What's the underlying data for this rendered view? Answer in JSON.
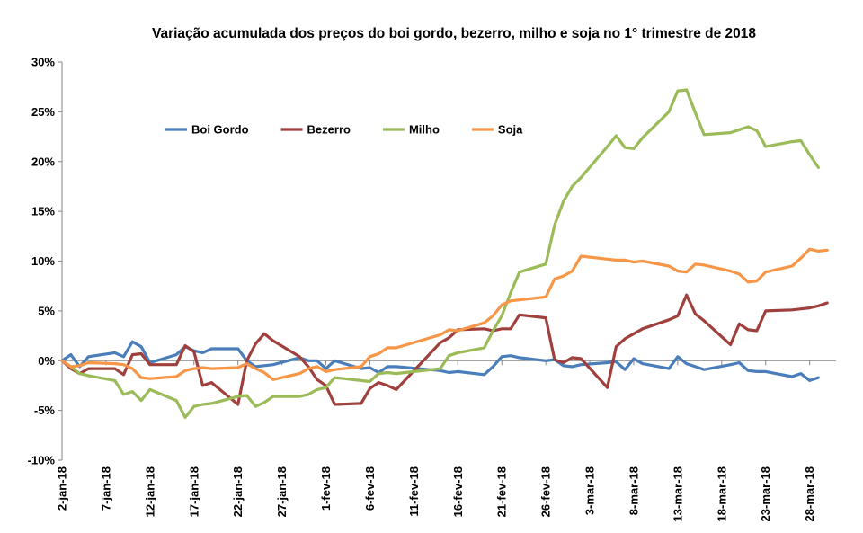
{
  "chart_data": {
    "type": "line",
    "title": "Variação acumulada dos preços do boi gordo, bezerro, milho e soja no 1° trimestre de 2018",
    "xlabel": "",
    "ylabel": "",
    "ylim": [
      -0.1,
      0.3
    ],
    "y_ticks": [
      {
        "value": 0.3,
        "label": "30%"
      },
      {
        "value": 0.25,
        "label": "25%"
      },
      {
        "value": 0.2,
        "label": "20%"
      },
      {
        "value": 0.15,
        "label": "15%"
      },
      {
        "value": 0.1,
        "label": "10%"
      },
      {
        "value": 0.05,
        "label": "5%"
      },
      {
        "value": 0.0,
        "label": "0%"
      },
      {
        "value": -0.05,
        "label": "-5%"
      },
      {
        "value": -0.1,
        "label": "-10%"
      }
    ],
    "x_range": [
      "2018-01-02",
      "2018-03-31"
    ],
    "x_ticks": [
      {
        "date": "2018-01-02",
        "label": "2-jan-18"
      },
      {
        "date": "2018-01-07",
        "label": "7-jan-18"
      },
      {
        "date": "2018-01-12",
        "label": "12-jan-18"
      },
      {
        "date": "2018-01-17",
        "label": "17-jan-18"
      },
      {
        "date": "2018-01-22",
        "label": "22-jan-18"
      },
      {
        "date": "2018-01-27",
        "label": "27-jan-18"
      },
      {
        "date": "2018-02-01",
        "label": "1-fev-18"
      },
      {
        "date": "2018-02-06",
        "label": "6-fev-18"
      },
      {
        "date": "2018-02-11",
        "label": "11-fev-18"
      },
      {
        "date": "2018-02-16",
        "label": "16-fev-18"
      },
      {
        "date": "2018-02-21",
        "label": "21-fev-18"
      },
      {
        "date": "2018-02-26",
        "label": "26-fev-18"
      },
      {
        "date": "2018-03-03",
        "label": "3-mar-18"
      },
      {
        "date": "2018-03-08",
        "label": "8-mar-18"
      },
      {
        "date": "2018-03-13",
        "label": "13-mar-18"
      },
      {
        "date": "2018-03-18",
        "label": "18-mar-18"
      },
      {
        "date": "2018-03-23",
        "label": "23-mar-18"
      },
      {
        "date": "2018-03-28",
        "label": "28-mar-18"
      }
    ],
    "grid": false,
    "legend_position": "top-left",
    "series": [
      {
        "name": "Boi Gordo",
        "color": "#4a7ebb",
        "points": [
          [
            "2018-01-02",
            0.0
          ],
          [
            "2018-01-03",
            0.006
          ],
          [
            "2018-01-04",
            -0.006
          ],
          [
            "2018-01-05",
            0.004
          ],
          [
            "2018-01-08",
            0.008
          ],
          [
            "2018-01-09",
            0.004
          ],
          [
            "2018-01-10",
            0.019
          ],
          [
            "2018-01-11",
            0.014
          ],
          [
            "2018-01-12",
            -0.002
          ],
          [
            "2018-01-15",
            0.006
          ],
          [
            "2018-01-16",
            0.014
          ],
          [
            "2018-01-17",
            0.01
          ],
          [
            "2018-01-18",
            0.008
          ],
          [
            "2018-01-19",
            0.012
          ],
          [
            "2018-01-22",
            0.012
          ],
          [
            "2018-01-23",
            0.0
          ],
          [
            "2018-01-24",
            -0.006
          ],
          [
            "2018-01-25",
            -0.005
          ],
          [
            "2018-01-26",
            -0.004
          ],
          [
            "2018-01-29",
            0.003
          ],
          [
            "2018-01-30",
            0.0
          ],
          [
            "2018-01-31",
            0.0
          ],
          [
            "2018-02-01",
            -0.008
          ],
          [
            "2018-02-02",
            0.0
          ],
          [
            "2018-02-05",
            -0.008
          ],
          [
            "2018-02-06",
            -0.007
          ],
          [
            "2018-02-07",
            -0.012
          ],
          [
            "2018-02-08",
            -0.006
          ],
          [
            "2018-02-09",
            -0.006
          ],
          [
            "2018-02-14",
            -0.01
          ],
          [
            "2018-02-15",
            -0.012
          ],
          [
            "2018-02-16",
            -0.011
          ],
          [
            "2018-02-19",
            -0.014
          ],
          [
            "2018-02-20",
            -0.006
          ],
          [
            "2018-02-21",
            0.004
          ],
          [
            "2018-02-22",
            0.005
          ],
          [
            "2018-02-23",
            0.003
          ],
          [
            "2018-02-26",
            0.0
          ],
          [
            "2018-02-27",
            0.001
          ],
          [
            "2018-02-28",
            -0.005
          ],
          [
            "2018-03-01",
            -0.006
          ],
          [
            "2018-03-02",
            -0.004
          ],
          [
            "2018-03-05",
            -0.002
          ],
          [
            "2018-03-06",
            -0.001
          ],
          [
            "2018-03-07",
            -0.009
          ],
          [
            "2018-03-08",
            0.002
          ],
          [
            "2018-03-09",
            -0.003
          ],
          [
            "2018-03-12",
            -0.008
          ],
          [
            "2018-03-13",
            0.004
          ],
          [
            "2018-03-14",
            -0.003
          ],
          [
            "2018-03-15",
            -0.006
          ],
          [
            "2018-03-16",
            -0.009
          ],
          [
            "2018-03-19",
            -0.004
          ],
          [
            "2018-03-20",
            -0.002
          ],
          [
            "2018-03-21",
            -0.01
          ],
          [
            "2018-03-22",
            -0.011
          ],
          [
            "2018-03-23",
            -0.011
          ],
          [
            "2018-03-26",
            -0.016
          ],
          [
            "2018-03-27",
            -0.013
          ],
          [
            "2018-03-28",
            -0.02
          ],
          [
            "2018-03-29",
            -0.017
          ]
        ]
      },
      {
        "name": "Bezerro",
        "color": "#a0403d",
        "points": [
          [
            "2018-01-02",
            0.0
          ],
          [
            "2018-01-03",
            -0.008
          ],
          [
            "2018-01-04",
            -0.013
          ],
          [
            "2018-01-05",
            -0.008
          ],
          [
            "2018-01-08",
            -0.008
          ],
          [
            "2018-01-09",
            -0.014
          ],
          [
            "2018-01-10",
            0.006
          ],
          [
            "2018-01-11",
            0.007
          ],
          [
            "2018-01-12",
            -0.004
          ],
          [
            "2018-01-15",
            -0.004
          ],
          [
            "2018-01-16",
            0.015
          ],
          [
            "2018-01-17",
            0.009
          ],
          [
            "2018-01-18",
            -0.025
          ],
          [
            "2018-01-19",
            -0.022
          ],
          [
            "2018-01-22",
            -0.044
          ],
          [
            "2018-01-23",
            0.0
          ],
          [
            "2018-01-24",
            0.017
          ],
          [
            "2018-01-25",
            0.027
          ],
          [
            "2018-01-26",
            0.02
          ],
          [
            "2018-01-29",
            0.004
          ],
          [
            "2018-01-30",
            -0.006
          ],
          [
            "2018-01-31",
            -0.019
          ],
          [
            "2018-02-01",
            -0.025
          ],
          [
            "2018-02-02",
            -0.044
          ],
          [
            "2018-02-05",
            -0.043
          ],
          [
            "2018-02-06",
            -0.028
          ],
          [
            "2018-02-07",
            -0.022
          ],
          [
            "2018-02-08",
            -0.025
          ],
          [
            "2018-02-09",
            -0.029
          ],
          [
            "2018-02-14",
            0.018
          ],
          [
            "2018-02-15",
            0.023
          ],
          [
            "2018-02-16",
            0.031
          ],
          [
            "2018-02-19",
            0.032
          ],
          [
            "2018-02-20",
            0.03
          ],
          [
            "2018-02-21",
            0.032
          ],
          [
            "2018-02-22",
            0.032
          ],
          [
            "2018-02-23",
            0.046
          ],
          [
            "2018-02-26",
            0.043
          ],
          [
            "2018-02-27",
            0.001
          ],
          [
            "2018-02-28",
            -0.002
          ],
          [
            "2018-03-01",
            0.003
          ],
          [
            "2018-03-02",
            0.002
          ],
          [
            "2018-03-05",
            -0.027
          ],
          [
            "2018-03-06",
            0.014
          ],
          [
            "2018-03-07",
            0.022
          ],
          [
            "2018-03-08",
            0.027
          ],
          [
            "2018-03-09",
            0.032
          ],
          [
            "2018-03-12",
            0.041
          ],
          [
            "2018-03-13",
            0.045
          ],
          [
            "2018-03-14",
            0.066
          ],
          [
            "2018-03-15",
            0.047
          ],
          [
            "2018-03-16",
            0.04
          ],
          [
            "2018-03-19",
            0.016
          ],
          [
            "2018-03-20",
            0.037
          ],
          [
            "2018-03-21",
            0.031
          ],
          [
            "2018-03-22",
            0.03
          ],
          [
            "2018-03-23",
            0.05
          ],
          [
            "2018-03-26",
            0.051
          ],
          [
            "2018-03-27",
            0.052
          ],
          [
            "2018-03-28",
            0.053
          ],
          [
            "2018-03-29",
            0.055
          ],
          [
            "2018-03-30",
            0.058
          ]
        ]
      },
      {
        "name": "Milho",
        "color": "#9bbb59",
        "points": [
          [
            "2018-01-02",
            0.0
          ],
          [
            "2018-01-03",
            -0.006
          ],
          [
            "2018-01-04",
            -0.013
          ],
          [
            "2018-01-05",
            -0.015
          ],
          [
            "2018-01-08",
            -0.02
          ],
          [
            "2018-01-09",
            -0.034
          ],
          [
            "2018-01-10",
            -0.031
          ],
          [
            "2018-01-11",
            -0.04
          ],
          [
            "2018-01-12",
            -0.029
          ],
          [
            "2018-01-15",
            -0.04
          ],
          [
            "2018-01-16",
            -0.057
          ],
          [
            "2018-01-17",
            -0.046
          ],
          [
            "2018-01-18",
            -0.044
          ],
          [
            "2018-01-19",
            -0.043
          ],
          [
            "2018-01-22",
            -0.036
          ],
          [
            "2018-01-23",
            -0.035
          ],
          [
            "2018-01-24",
            -0.046
          ],
          [
            "2018-01-25",
            -0.042
          ],
          [
            "2018-01-26",
            -0.036
          ],
          [
            "2018-01-29",
            -0.036
          ],
          [
            "2018-01-30",
            -0.034
          ],
          [
            "2018-01-31",
            -0.029
          ],
          [
            "2018-02-01",
            -0.027
          ],
          [
            "2018-02-02",
            -0.017
          ],
          [
            "2018-02-05",
            -0.02
          ],
          [
            "2018-02-06",
            -0.021
          ],
          [
            "2018-02-07",
            -0.013
          ],
          [
            "2018-02-08",
            -0.012
          ],
          [
            "2018-02-09",
            -0.013
          ],
          [
            "2018-02-14",
            -0.008
          ],
          [
            "2018-02-15",
            0.005
          ],
          [
            "2018-02-16",
            0.008
          ],
          [
            "2018-02-19",
            0.013
          ],
          [
            "2018-02-20",
            0.03
          ],
          [
            "2018-02-21",
            0.045
          ],
          [
            "2018-02-22",
            0.068
          ],
          [
            "2018-02-23",
            0.089
          ],
          [
            "2018-02-26",
            0.097
          ],
          [
            "2018-02-27",
            0.136
          ],
          [
            "2018-02-28",
            0.16
          ],
          [
            "2018-03-01",
            0.175
          ],
          [
            "2018-03-02",
            0.184
          ],
          [
            "2018-03-05",
            0.215
          ],
          [
            "2018-03-06",
            0.226
          ],
          [
            "2018-03-07",
            0.214
          ],
          [
            "2018-03-08",
            0.213
          ],
          [
            "2018-03-09",
            0.224
          ],
          [
            "2018-03-12",
            0.25
          ],
          [
            "2018-03-13",
            0.271
          ],
          [
            "2018-03-14",
            0.272
          ],
          [
            "2018-03-15",
            0.249
          ],
          [
            "2018-03-16",
            0.227
          ],
          [
            "2018-03-19",
            0.229
          ],
          [
            "2018-03-20",
            0.232
          ],
          [
            "2018-03-21",
            0.235
          ],
          [
            "2018-03-22",
            0.231
          ],
          [
            "2018-03-23",
            0.215
          ],
          [
            "2018-03-26",
            0.22
          ],
          [
            "2018-03-27",
            0.221
          ],
          [
            "2018-03-28",
            0.207
          ],
          [
            "2018-03-29",
            0.194
          ]
        ]
      },
      {
        "name": "Soja",
        "color": "#f79646",
        "points": [
          [
            "2018-01-02",
            0.0
          ],
          [
            "2018-01-03",
            -0.006
          ],
          [
            "2018-01-04",
            -0.005
          ],
          [
            "2018-01-05",
            -0.002
          ],
          [
            "2018-01-08",
            -0.003
          ],
          [
            "2018-01-09",
            -0.004
          ],
          [
            "2018-01-10",
            -0.008
          ],
          [
            "2018-01-11",
            -0.017
          ],
          [
            "2018-01-12",
            -0.018
          ],
          [
            "2018-01-15",
            -0.016
          ],
          [
            "2018-01-16",
            -0.01
          ],
          [
            "2018-01-17",
            -0.008
          ],
          [
            "2018-01-18",
            -0.007
          ],
          [
            "2018-01-19",
            -0.008
          ],
          [
            "2018-01-22",
            -0.007
          ],
          [
            "2018-01-23",
            -0.003
          ],
          [
            "2018-01-24",
            -0.008
          ],
          [
            "2018-01-25",
            -0.012
          ],
          [
            "2018-01-26",
            -0.019
          ],
          [
            "2018-01-29",
            -0.013
          ],
          [
            "2018-01-30",
            -0.008
          ],
          [
            "2018-01-31",
            -0.006
          ],
          [
            "2018-02-01",
            -0.011
          ],
          [
            "2018-02-02",
            -0.009
          ],
          [
            "2018-02-05",
            -0.006
          ],
          [
            "2018-02-06",
            0.004
          ],
          [
            "2018-02-07",
            0.007
          ],
          [
            "2018-02-08",
            0.013
          ],
          [
            "2018-02-09",
            0.013
          ],
          [
            "2018-02-14",
            0.026
          ],
          [
            "2018-02-15",
            0.031
          ],
          [
            "2018-02-16",
            0.03
          ],
          [
            "2018-02-19",
            0.038
          ],
          [
            "2018-02-20",
            0.045
          ],
          [
            "2018-02-21",
            0.056
          ],
          [
            "2018-02-22",
            0.06
          ],
          [
            "2018-02-23",
            0.061
          ],
          [
            "2018-02-26",
            0.064
          ],
          [
            "2018-02-27",
            0.082
          ],
          [
            "2018-02-28",
            0.085
          ],
          [
            "2018-03-01",
            0.09
          ],
          [
            "2018-03-02",
            0.105
          ],
          [
            "2018-03-05",
            0.102
          ],
          [
            "2018-03-06",
            0.101
          ],
          [
            "2018-03-07",
            0.101
          ],
          [
            "2018-03-08",
            0.099
          ],
          [
            "2018-03-09",
            0.1
          ],
          [
            "2018-03-12",
            0.095
          ],
          [
            "2018-03-13",
            0.09
          ],
          [
            "2018-03-14",
            0.089
          ],
          [
            "2018-03-15",
            0.097
          ],
          [
            "2018-03-16",
            0.096
          ],
          [
            "2018-03-19",
            0.09
          ],
          [
            "2018-03-20",
            0.087
          ],
          [
            "2018-03-21",
            0.079
          ],
          [
            "2018-03-22",
            0.08
          ],
          [
            "2018-03-23",
            0.089
          ],
          [
            "2018-03-26",
            0.095
          ],
          [
            "2018-03-27",
            0.103
          ],
          [
            "2018-03-28",
            0.112
          ],
          [
            "2018-03-29",
            0.11
          ],
          [
            "2018-03-30",
            0.111
          ]
        ]
      }
    ]
  }
}
